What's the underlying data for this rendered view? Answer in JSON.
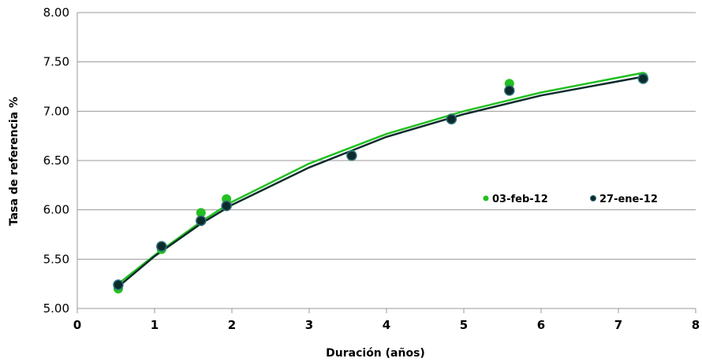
{
  "chart_data": {
    "type": "scatter",
    "title": "",
    "xlabel": "Duración (años)",
    "ylabel": "Tasa de referencia %",
    "xlim": [
      0,
      8
    ],
    "ylim": [
      5.0,
      8.0
    ],
    "x_ticks": [
      "0",
      "1",
      "2",
      "3",
      "4",
      "5",
      "6",
      "7",
      "8"
    ],
    "y_ticks": [
      "5.00",
      "5.50",
      "6.00",
      "6.50",
      "7.00",
      "7.50",
      "8.00"
    ],
    "grid": "horizontal",
    "legend_position": "inside-right",
    "series": [
      {
        "name": "03-feb-12",
        "color": "#22c022",
        "points": [
          [
            0.53,
            5.2
          ],
          [
            1.09,
            5.6
          ],
          [
            1.6,
            5.97
          ],
          [
            1.93,
            6.11
          ],
          [
            3.55,
            6.56
          ],
          [
            4.84,
            6.93
          ],
          [
            5.59,
            7.28
          ],
          [
            7.32,
            7.35
          ]
        ],
        "trend": [
          [
            0.53,
            5.25
          ],
          [
            1.0,
            5.54
          ],
          [
            1.6,
            5.88
          ],
          [
            2.0,
            6.08
          ],
          [
            3.0,
            6.47
          ],
          [
            4.0,
            6.77
          ],
          [
            5.0,
            7.0
          ],
          [
            6.0,
            7.19
          ],
          [
            7.32,
            7.39
          ]
        ]
      },
      {
        "name": "27-ene-12",
        "color": "#0b2b2b",
        "points": [
          [
            0.53,
            5.24
          ],
          [
            1.09,
            5.63
          ],
          [
            1.6,
            5.89
          ],
          [
            1.93,
            6.04
          ],
          [
            3.55,
            6.55
          ],
          [
            4.84,
            6.92
          ],
          [
            5.59,
            7.21
          ],
          [
            7.32,
            7.33
          ]
        ],
        "trend": [
          [
            0.53,
            5.22
          ],
          [
            1.0,
            5.53
          ],
          [
            1.6,
            5.86
          ],
          [
            2.0,
            6.05
          ],
          [
            3.0,
            6.43
          ],
          [
            4.0,
            6.74
          ],
          [
            5.0,
            6.97
          ],
          [
            6.0,
            7.16
          ],
          [
            7.32,
            7.35
          ]
        ]
      }
    ]
  }
}
